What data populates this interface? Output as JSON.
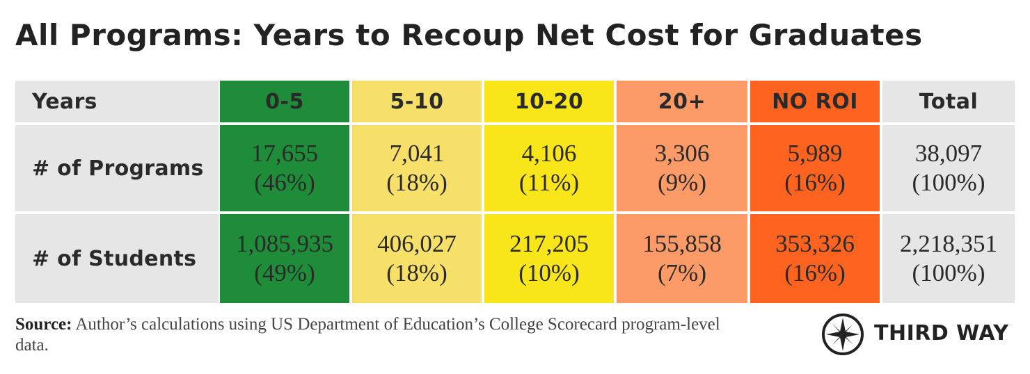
{
  "title": "All Programs: Years to Recoup Net Cost for Graduates",
  "chart_data": {
    "type": "table",
    "columns": [
      {
        "label": "Years",
        "color": "#e6e6e6"
      },
      {
        "label": "0-5",
        "color": "#1e8c38"
      },
      {
        "label": "5-10",
        "color": "#f7e06a"
      },
      {
        "label": "10-20",
        "color": "#f8e51a"
      },
      {
        "label": "20+",
        "color": "#fc9b67"
      },
      {
        "label": "NO ROI",
        "color": "#fe6320"
      },
      {
        "label": "Total",
        "color": "#e6e6e6"
      }
    ],
    "rows": [
      {
        "label": "# of Programs",
        "cells": [
          {
            "value": "17,655",
            "pct": "(46%)"
          },
          {
            "value": "7,041",
            "pct": "(18%)"
          },
          {
            "value": "4,106",
            "pct": "(11%)"
          },
          {
            "value": "3,306",
            "pct": "(9%)"
          },
          {
            "value": "5,989",
            "pct": "(16%)"
          },
          {
            "value": "38,097",
            "pct": "(100%)"
          }
        ]
      },
      {
        "label": "# of Students",
        "cells": [
          {
            "value": "1,085,935",
            "pct": "(49%)"
          },
          {
            "value": "406,027",
            "pct": "(18%)"
          },
          {
            "value": "217,205",
            "pct": "(10%)"
          },
          {
            "value": "155,858",
            "pct": "(7%)"
          },
          {
            "value": "353,326",
            "pct": "(16%)"
          },
          {
            "value": "2,218,351",
            "pct": "(100%)"
          }
        ]
      }
    ]
  },
  "source": {
    "label": "Source:",
    "text": "Author’s calculations using US Department of Education’s College Scorecard program-level data."
  },
  "logo": {
    "text": "THIRD WAY"
  }
}
